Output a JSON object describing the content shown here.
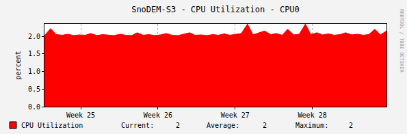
{
  "chart_data": {
    "type": "area",
    "title": "SnoDEM-S3 - CPU Utilization - CPU0",
    "y_label": "percent",
    "watermark": "RRDTOOL / TOBI OETIKER",
    "grid": true,
    "xlim": [
      24.53,
      28.96
    ],
    "xticks": [
      {
        "value": 25,
        "label": "Week 25"
      },
      {
        "value": 26,
        "label": "Week 26"
      },
      {
        "value": 27,
        "label": "Week 27"
      },
      {
        "value": 28,
        "label": "Week 28"
      }
    ],
    "ylim": [
      0,
      2.35
    ],
    "yticks": [
      {
        "value": 0,
        "label": "0.0"
      },
      {
        "value": 0.5,
        "label": "0.5"
      },
      {
        "value": 1,
        "label": "1.0"
      },
      {
        "value": 1.5,
        "label": "1.5"
      },
      {
        "value": 2,
        "label": "2.0"
      }
    ],
    "x": [
      24.53,
      24.61,
      24.68,
      24.76,
      24.83,
      24.91,
      24.98,
      25.06,
      25.13,
      25.21,
      25.28,
      25.36,
      25.43,
      25.51,
      25.58,
      25.66,
      25.73,
      25.81,
      25.88,
      25.96,
      26.03,
      26.11,
      26.18,
      26.26,
      26.33,
      26.41,
      26.48,
      26.56,
      26.63,
      26.71,
      26.78,
      26.86,
      26.93,
      27.01,
      27.08,
      27.16,
      27.23,
      27.31,
      27.38,
      27.46,
      27.53,
      27.61,
      27.68,
      27.76,
      27.83,
      27.91,
      27.98,
      28.06,
      28.13,
      28.21,
      28.28,
      28.36,
      28.43,
      28.51,
      28.58,
      28.66,
      28.73,
      28.81,
      28.88,
      28.96
    ],
    "series": [
      {
        "name": "CPU Utilization",
        "color": "#ff0000",
        "values": [
          2.02,
          2.22,
          2.05,
          2.03,
          2.06,
          2.02,
          2.04,
          2.03,
          2.08,
          2.02,
          2.05,
          2.03,
          2.02,
          2.06,
          2.03,
          2.02,
          2.1,
          2.03,
          2.05,
          2.02,
          2.04,
          2.08,
          2.03,
          2.02,
          2.06,
          2.1,
          2.03,
          2.04,
          2.02,
          2.05,
          2.03,
          2.07,
          2.03,
          2.05,
          2.08,
          2.35,
          2.04,
          2.1,
          2.15,
          2.05,
          2.08,
          2.03,
          2.2,
          2.04,
          2.06,
          2.35,
          2.05,
          2.1,
          2.04,
          2.07,
          2.03,
          2.05,
          2.1,
          2.04,
          2.06,
          2.03,
          2.05,
          2.2,
          2.04,
          2.15
        ]
      }
    ],
    "stats": [
      {
        "label": "Current:",
        "value": 2
      },
      {
        "label": "Average:",
        "value": 2
      },
      {
        "label": "Maximum:",
        "value": 2
      }
    ]
  }
}
